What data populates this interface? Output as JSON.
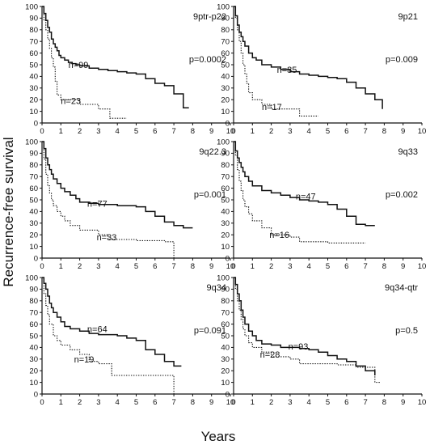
{
  "figure": {
    "ylabel": "Recurrence-free survival",
    "xlabel": "Years"
  },
  "chart_data": [
    {
      "type": "line",
      "title": "9ptr-p22",
      "p_value": "p=0.0002",
      "xlim": [
        0,
        10
      ],
      "ylim": [
        0,
        100
      ],
      "xticks": [
        "0",
        "1",
        "2",
        "3",
        "4",
        "5",
        "6",
        "7",
        "8",
        "9",
        "10"
      ],
      "yticks": [
        "0",
        "10",
        "20",
        "30",
        "40",
        "50",
        "60",
        "70",
        "80",
        "90",
        "100"
      ],
      "series": [
        {
          "name": "n=99",
          "style": "solid",
          "color": "#111111",
          "label_x": 1.4,
          "label_y": 50,
          "x": [
            0,
            0.1,
            0.2,
            0.3,
            0.4,
            0.5,
            0.6,
            0.7,
            0.8,
            0.9,
            1.0,
            1.2,
            1.4,
            1.6,
            1.8,
            2.0,
            2.5,
            3.0,
            3.5,
            4.0,
            4.5,
            5.0,
            5.5,
            6.0,
            6.5,
            7.0,
            7.5,
            7.8
          ],
          "y": [
            100,
            94,
            88,
            82,
            78,
            72,
            68,
            65,
            62,
            58,
            56,
            54,
            52,
            51,
            50,
            49,
            47,
            46,
            45,
            44,
            43,
            42,
            38,
            34,
            32,
            25,
            13,
            13
          ]
        },
        {
          "name": "n=23",
          "style": "dotted",
          "color": "#111111",
          "label_x": 1.0,
          "label_y": 19,
          "x": [
            0,
            0.1,
            0.2,
            0.3,
            0.4,
            0.5,
            0.6,
            0.7,
            0.8,
            1.0,
            2.0,
            3.0,
            3.6,
            4.5
          ],
          "y": [
            100,
            88,
            80,
            72,
            64,
            56,
            48,
            36,
            24,
            20,
            16,
            12,
            4,
            4
          ]
        }
      ]
    },
    {
      "type": "line",
      "title": "9p21",
      "p_value": "p=0.009",
      "xlim": [
        0,
        10
      ],
      "ylim": [
        0,
        100
      ],
      "xticks": [
        "0",
        "1",
        "2",
        "3",
        "4",
        "5",
        "6",
        "7",
        "8",
        "9",
        "10"
      ],
      "yticks": [
        "0",
        "10",
        "20",
        "30",
        "40",
        "50",
        "60",
        "70",
        "80",
        "90",
        "100"
      ],
      "series": [
        {
          "name": "n=85",
          "style": "solid",
          "color": "#111111",
          "label_x": 2.3,
          "label_y": 46,
          "x": [
            0,
            0.1,
            0.2,
            0.3,
            0.4,
            0.5,
            0.6,
            0.8,
            1.0,
            1.2,
            1.5,
            2.0,
            2.5,
            3.0,
            3.5,
            4.0,
            4.5,
            5.0,
            5.5,
            6.0,
            6.5,
            7.0,
            7.5,
            7.9
          ],
          "y": [
            100,
            92,
            84,
            78,
            74,
            70,
            66,
            60,
            56,
            54,
            50,
            48,
            46,
            44,
            42,
            41,
            40,
            39,
            38,
            35,
            30,
            25,
            20,
            12
          ]
        },
        {
          "name": "n=17",
          "style": "dotted",
          "color": "#111111",
          "label_x": 1.5,
          "label_y": 14,
          "x": [
            0,
            0.1,
            0.2,
            0.3,
            0.4,
            0.5,
            0.6,
            0.7,
            0.8,
            1.0,
            1.5,
            2.0,
            3.0,
            3.5,
            4.5
          ],
          "y": [
            100,
            90,
            80,
            70,
            60,
            50,
            42,
            34,
            26,
            20,
            16,
            12,
            12,
            6,
            6
          ]
        }
      ]
    },
    {
      "type": "line",
      "title": "9q22.3",
      "p_value": "p=0.001",
      "xlim": [
        0,
        10
      ],
      "ylim": [
        0,
        100
      ],
      "xticks": [
        "0",
        "1",
        "2",
        "3",
        "4",
        "5",
        "6",
        "7",
        "8",
        "9",
        "10"
      ],
      "yticks": [
        "0",
        "10",
        "20",
        "30",
        "40",
        "50",
        "60",
        "70",
        "80",
        "90",
        "100"
      ],
      "series": [
        {
          "name": "n=77",
          "style": "solid",
          "color": "#111111",
          "label_x": 2.4,
          "label_y": 47,
          "x": [
            0,
            0.1,
            0.2,
            0.3,
            0.4,
            0.5,
            0.6,
            0.8,
            1.0,
            1.2,
            1.5,
            1.8,
            2.0,
            2.5,
            3.0,
            3.5,
            4.0,
            4.5,
            5.0,
            5.5,
            6.0,
            6.5,
            7.0,
            7.5,
            8.0
          ],
          "y": [
            100,
            94,
            86,
            80,
            76,
            72,
            68,
            64,
            60,
            57,
            54,
            51,
            48,
            47,
            46,
            46,
            45,
            45,
            44,
            40,
            36,
            31,
            28,
            26,
            26
          ]
        },
        {
          "name": "n=33",
          "style": "dotted",
          "color": "#111111",
          "label_x": 2.9,
          "label_y": 18,
          "x": [
            0,
            0.1,
            0.2,
            0.3,
            0.4,
            0.5,
            0.6,
            0.8,
            1.0,
            1.2,
            1.5,
            2.0,
            3.0,
            3.5,
            5.0,
            6.5,
            7.0,
            7.0
          ],
          "y": [
            100,
            85,
            72,
            62,
            56,
            50,
            45,
            40,
            36,
            32,
            28,
            24,
            20,
            16,
            15,
            14,
            14,
            0
          ]
        }
      ]
    },
    {
      "type": "line",
      "title": "9q33",
      "p_value": "p=0.002",
      "xlim": [
        0,
        10
      ],
      "ylim": [
        0,
        100
      ],
      "xticks": [
        "0",
        "1",
        "2",
        "3",
        "4",
        "5",
        "6",
        "7",
        "8",
        "9",
        "10"
      ],
      "yticks": [
        "0",
        "10",
        "20",
        "30",
        "40",
        "50",
        "60",
        "70",
        "80",
        "90",
        "100"
      ],
      "series": [
        {
          "name": "n=47",
          "style": "solid",
          "color": "#111111",
          "label_x": 3.3,
          "label_y": 53,
          "x": [
            0,
            0.1,
            0.2,
            0.3,
            0.4,
            0.5,
            0.6,
            0.8,
            1.0,
            1.5,
            2.0,
            2.5,
            3.0,
            3.5,
            4.0,
            4.5,
            5.0,
            5.5,
            6.0,
            6.5,
            7.0,
            7.5
          ],
          "y": [
            100,
            92,
            86,
            82,
            78,
            74,
            70,
            66,
            62,
            58,
            56,
            54,
            52,
            50,
            49,
            48,
            46,
            42,
            36,
            29,
            28,
            28
          ]
        },
        {
          "name": "n=16",
          "style": "dotted",
          "color": "#111111",
          "label_x": 1.9,
          "label_y": 20,
          "x": [
            0,
            0.1,
            0.2,
            0.3,
            0.4,
            0.5,
            0.6,
            0.8,
            1.0,
            1.5,
            2.0,
            3.0,
            3.5,
            5.0,
            7.0
          ],
          "y": [
            100,
            88,
            76,
            66,
            58,
            50,
            44,
            38,
            32,
            26,
            20,
            18,
            14,
            13,
            13
          ]
        }
      ]
    },
    {
      "type": "line",
      "title": "9q34",
      "p_value": "p=0.091",
      "xlim": [
        0,
        10
      ],
      "ylim": [
        0,
        100
      ],
      "xticks": [
        "0",
        "1",
        "2",
        "3",
        "4",
        "5",
        "6",
        "7",
        "8",
        "9",
        "10"
      ],
      "yticks": [
        "0",
        "10",
        "20",
        "30",
        "40",
        "50",
        "60",
        "70",
        "80",
        "90",
        "100"
      ],
      "series": [
        {
          "name": "n=64",
          "style": "solid",
          "color": "#111111",
          "label_x": 2.4,
          "label_y": 56,
          "x": [
            0,
            0.1,
            0.2,
            0.3,
            0.4,
            0.5,
            0.6,
            0.8,
            1.0,
            1.2,
            1.5,
            2.0,
            2.5,
            3.0,
            3.5,
            4.0,
            4.5,
            5.0,
            5.5,
            6.0,
            6.5,
            7.0,
            7.4
          ],
          "y": [
            100,
            95,
            90,
            84,
            78,
            74,
            70,
            66,
            62,
            58,
            56,
            54,
            52,
            51,
            51,
            50,
            48,
            46,
            38,
            34,
            28,
            24,
            24
          ]
        },
        {
          "name": "n=19",
          "style": "dotted",
          "color": "#111111",
          "label_x": 1.7,
          "label_y": 30,
          "x": [
            0,
            0.1,
            0.2,
            0.3,
            0.4,
            0.6,
            0.8,
            1.0,
            1.5,
            2.0,
            2.5,
            3.0,
            3.7,
            5.0,
            6.5,
            7.0,
            7.0
          ],
          "y": [
            100,
            86,
            76,
            68,
            60,
            50,
            46,
            42,
            38,
            34,
            28,
            26,
            16,
            16,
            16,
            16,
            0
          ]
        }
      ]
    },
    {
      "type": "line",
      "title": "9q34-qtr",
      "p_value": "p=0.5",
      "xlim": [
        0,
        10
      ],
      "ylim": [
        0,
        100
      ],
      "xticks": [
        "0",
        "1",
        "2",
        "3",
        "4",
        "5",
        "6",
        "7",
        "8",
        "9",
        "10"
      ],
      "yticks": [
        "0",
        "10",
        "20",
        "30",
        "40",
        "50",
        "60",
        "70",
        "80",
        "90",
        "100"
      ],
      "series": [
        {
          "name": "n=93",
          "style": "solid",
          "color": "#111111",
          "label_x": 2.9,
          "label_y": 41,
          "x": [
            0,
            0.1,
            0.2,
            0.3,
            0.4,
            0.5,
            0.6,
            0.8,
            1.0,
            1.2,
            1.5,
            2.0,
            2.5,
            3.0,
            3.5,
            4.0,
            4.5,
            5.0,
            5.5,
            6.0,
            6.5,
            7.0,
            7.5
          ],
          "y": [
            100,
            94,
            86,
            80,
            72,
            66,
            60,
            54,
            50,
            46,
            43,
            42,
            40,
            40,
            39,
            38,
            36,
            33,
            30,
            28,
            24,
            20,
            16
          ]
        },
        {
          "name": "n=28",
          "style": "dotted",
          "color": "#111111",
          "label_x": 1.4,
          "label_y": 34,
          "x": [
            0,
            0.1,
            0.2,
            0.3,
            0.4,
            0.5,
            0.6,
            0.8,
            1.0,
            1.5,
            2.0,
            3.0,
            3.5,
            4.5,
            5.5,
            6.5,
            7.5,
            7.8
          ],
          "y": [
            100,
            90,
            80,
            72,
            64,
            56,
            50,
            44,
            40,
            36,
            32,
            30,
            26,
            26,
            25,
            23,
            10,
            10
          ]
        }
      ]
    }
  ]
}
